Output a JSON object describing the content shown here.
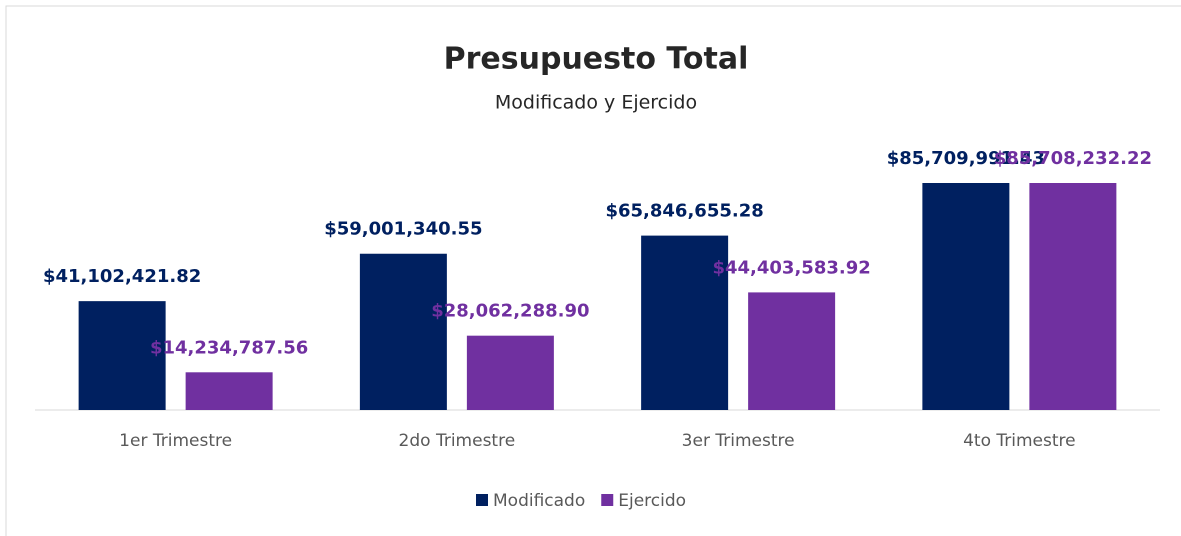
{
  "chart_data": {
    "type": "bar",
    "title": "Presupuesto Total",
    "subtitle": "Modificado  y Ejercido",
    "categories": [
      "1er Trimestre",
      "2do Trimestre",
      "3er Trimestre",
      "4to Trimestre"
    ],
    "series": [
      {
        "name": "Modificado",
        "color": "#002060",
        "values": [
          41102421.82,
          59001340.55,
          65846655.28,
          85709991.43
        ],
        "value_labels": [
          "$41,102,421.82",
          "$59,001,340.55",
          "$65,846,655.28",
          "$85,709,991.43"
        ]
      },
      {
        "name": "Ejercido",
        "color": "#7030a0",
        "values": [
          14234787.56,
          28062288.9,
          44403583.92,
          85708232.22
        ],
        "value_labels": [
          "$14,234,787.56",
          "$28,062,288.90",
          "$44,403,583.92",
          "$85,708,232.22"
        ]
      }
    ],
    "legend": "bottom"
  }
}
